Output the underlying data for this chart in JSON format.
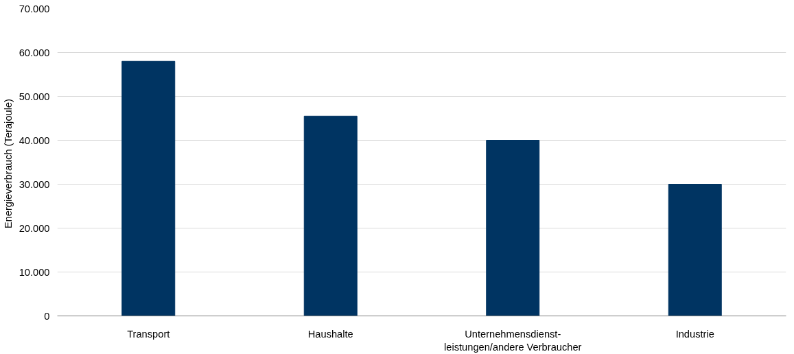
{
  "chart_data": {
    "type": "bar",
    "ylabel": "Energieverbrauch  (Terajoule)",
    "categories": [
      "Transport",
      "Haushalte",
      "Unternehmensdienst-\nleistungen/andere Verbraucher",
      "Industrie"
    ],
    "values": [
      58000,
      45500,
      40000,
      30000
    ],
    "color": "#003462",
    "ylim": [
      0,
      70000
    ],
    "yticks": [
      {
        "value": 0,
        "label": "0"
      },
      {
        "value": 10000,
        "label": "10.000"
      },
      {
        "value": 20000,
        "label": "20.000"
      },
      {
        "value": 30000,
        "label": "30.000"
      },
      {
        "value": 40000,
        "label": "40.000"
      },
      {
        "value": 50000,
        "label": "50.000"
      },
      {
        "value": 60000,
        "label": "60.000"
      },
      {
        "value": 70000,
        "label": "70.000"
      }
    ],
    "grid": "y"
  }
}
